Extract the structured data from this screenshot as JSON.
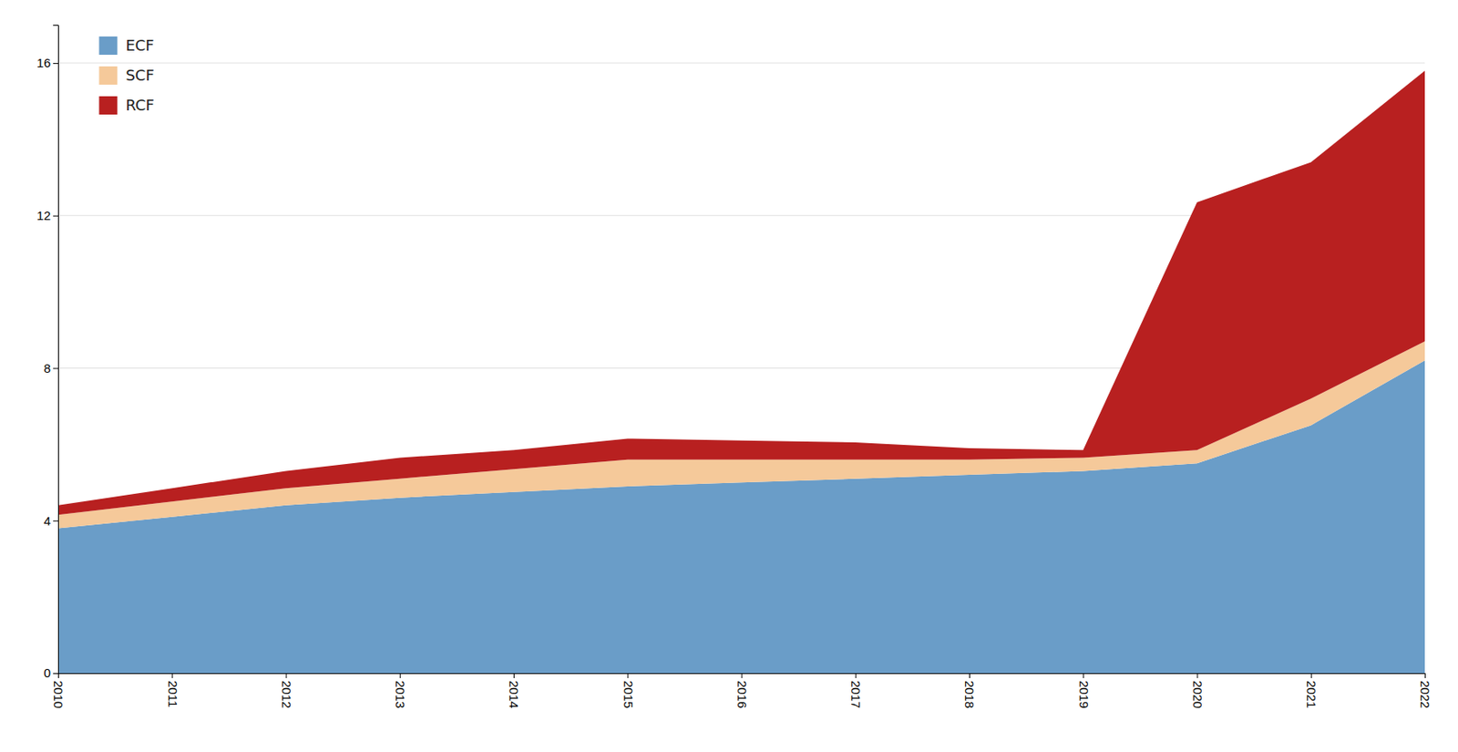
{
  "chart_data": {
    "type": "area",
    "stacked": true,
    "x": [
      2010,
      2011,
      2012,
      2013,
      2014,
      2015,
      2016,
      2017,
      2018,
      2019,
      2020,
      2021,
      2022
    ],
    "xlim": [
      2010,
      2022
    ],
    "xticks": [
      2010,
      2011,
      2012,
      2013,
      2014,
      2015,
      2016,
      2017,
      2018,
      2019,
      2020,
      2021,
      2022
    ],
    "ylim": [
      0,
      17
    ],
    "yticks": [
      0,
      4,
      8,
      12,
      16
    ],
    "grid": "y",
    "legend": "upper left",
    "series": [
      {
        "name": "ECF",
        "color": "#6a9dc8",
        "values": [
          3.8,
          4.1,
          4.4,
          4.6,
          4.75,
          4.9,
          5.0,
          5.1,
          5.2,
          5.3,
          5.5,
          6.5,
          8.2
        ]
      },
      {
        "name": "SCF",
        "color": "#f5c99a",
        "values": [
          0.35,
          0.4,
          0.45,
          0.5,
          0.6,
          0.7,
          0.6,
          0.5,
          0.4,
          0.35,
          0.35,
          0.7,
          0.5
        ]
      },
      {
        "name": "RCF",
        "color": "#b82020",
        "values": [
          0.25,
          0.35,
          0.45,
          0.55,
          0.5,
          0.55,
          0.5,
          0.45,
          0.3,
          0.2,
          6.5,
          6.2,
          7.1
        ]
      }
    ]
  }
}
